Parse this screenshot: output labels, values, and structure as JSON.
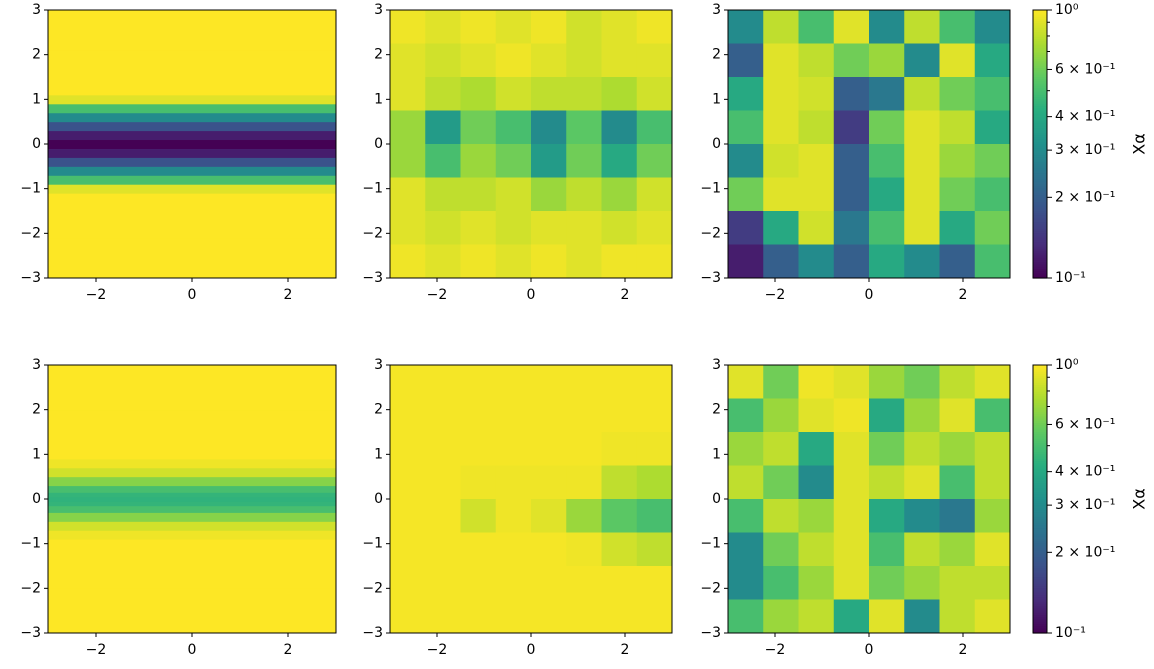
{
  "chart_data": [
    {
      "type": "profile",
      "colormap": "viridis",
      "log": true,
      "clim": [
        0.1,
        1
      ],
      "xlim": [
        -3,
        3
      ],
      "ylim": [
        -3,
        3
      ],
      "xticks": [
        {
          "value": -2,
          "label": "−2"
        },
        0,
        2
      ],
      "yticks": [
        {
          "value": -3,
          "label": "−3"
        },
        {
          "value": -2,
          "label": "−2"
        },
        {
          "value": -1,
          "label": "−1"
        },
        0,
        1,
        2,
        3
      ],
      "y": [
        -3,
        -1.2,
        -1,
        -0.8,
        -0.6,
        -0.4,
        -0.2,
        0,
        0.2,
        0.4,
        0.6,
        0.8,
        1,
        1.2,
        3
      ],
      "values": [
        1,
        1,
        0.9,
        0.5,
        0.3,
        0.18,
        0.12,
        0.1,
        0.12,
        0.18,
        0.3,
        0.5,
        0.9,
        1,
        1
      ]
    },
    {
      "type": "heatmap",
      "colormap": "viridis",
      "log": true,
      "clim": [
        0.1,
        1
      ],
      "xlim": [
        -3,
        3
      ],
      "ylim": [
        -3,
        3
      ],
      "xticks": [
        {
          "value": -2,
          "label": "−2"
        },
        0,
        2
      ],
      "yticks": [
        {
          "value": -3,
          "label": "−3"
        },
        {
          "value": -2,
          "label": "−2"
        },
        {
          "value": -1,
          "label": "−1"
        },
        0,
        1,
        2,
        3
      ],
      "z": [
        [
          0.95,
          0.9,
          0.95,
          0.9,
          0.95,
          0.85,
          0.9,
          0.95
        ],
        [
          0.9,
          0.85,
          0.9,
          0.95,
          0.9,
          0.85,
          0.9,
          0.9
        ],
        [
          0.9,
          0.8,
          0.75,
          0.85,
          0.8,
          0.8,
          0.75,
          0.85
        ],
        [
          0.7,
          0.35,
          0.6,
          0.5,
          0.3,
          0.55,
          0.3,
          0.5
        ],
        [
          0.7,
          0.5,
          0.7,
          0.6,
          0.35,
          0.6,
          0.4,
          0.6
        ],
        [
          0.9,
          0.8,
          0.8,
          0.85,
          0.7,
          0.8,
          0.7,
          0.85
        ],
        [
          0.9,
          0.85,
          0.9,
          0.85,
          0.9,
          0.9,
          0.85,
          0.9
        ],
        [
          0.95,
          0.9,
          0.95,
          0.9,
          0.95,
          0.9,
          0.95,
          0.95
        ]
      ]
    },
    {
      "type": "heatmap",
      "colormap": "viridis",
      "log": true,
      "clim": [
        0.1,
        1
      ],
      "xlim": [
        -3,
        3
      ],
      "ylim": [
        -3,
        3
      ],
      "xticks": [
        {
          "value": -2,
          "label": "−2"
        },
        0,
        2
      ],
      "yticks": [
        {
          "value": -3,
          "label": "−3"
        },
        {
          "value": -2,
          "label": "−2"
        },
        {
          "value": -1,
          "label": "−1"
        },
        0,
        1,
        2,
        3
      ],
      "z": [
        [
          0.3,
          0.8,
          0.5,
          0.9,
          0.3,
          0.8,
          0.5,
          0.3
        ],
        [
          0.2,
          0.9,
          0.8,
          0.6,
          0.7,
          0.3,
          0.9,
          0.4
        ],
        [
          0.4,
          0.9,
          0.85,
          0.2,
          0.25,
          0.8,
          0.6,
          0.5
        ],
        [
          0.5,
          0.9,
          0.8,
          0.15,
          0.6,
          0.9,
          0.8,
          0.4
        ],
        [
          0.3,
          0.85,
          0.9,
          0.2,
          0.5,
          0.9,
          0.7,
          0.6
        ],
        [
          0.6,
          0.9,
          0.9,
          0.2,
          0.4,
          0.9,
          0.6,
          0.5
        ],
        [
          0.15,
          0.4,
          0.85,
          0.25,
          0.5,
          0.9,
          0.4,
          0.6
        ],
        [
          0.12,
          0.2,
          0.3,
          0.2,
          0.4,
          0.3,
          0.2,
          0.5
        ]
      ],
      "colorbar": {
        "label": "Xα",
        "lim": [
          0.1,
          1
        ],
        "ticks": [
          {
            "value": 1,
            "label": "10⁰"
          },
          {
            "value": 0.6,
            "label": "6 × 10⁻¹"
          },
          {
            "value": 0.4,
            "label": "4 × 10⁻¹"
          },
          {
            "value": 0.3,
            "label": "3 × 10⁻¹"
          },
          {
            "value": 0.2,
            "label": "2 × 10⁻¹"
          },
          {
            "value": 0.1,
            "label": "10⁻¹"
          }
        ],
        "minor_ticks": [
          0.5,
          0.7,
          0.8,
          0.9
        ]
      }
    },
    {
      "type": "profile",
      "colormap": "viridis",
      "log": true,
      "clim": [
        0.1,
        1
      ],
      "xlim": [
        -3,
        3
      ],
      "ylim": [
        -3,
        3
      ],
      "xticks": [
        {
          "value": -2,
          "label": "−2"
        },
        0,
        2
      ],
      "yticks": [
        {
          "value": -3,
          "label": "−3"
        },
        {
          "value": -2,
          "label": "−2"
        },
        {
          "value": -1,
          "label": "−1"
        },
        0,
        1,
        2,
        3
      ],
      "y": [
        -3,
        -1,
        -0.8,
        -0.6,
        -0.4,
        -0.2,
        -0.1,
        0,
        0.1,
        0.2,
        0.4,
        0.6,
        0.8,
        1,
        3
      ],
      "values": [
        1,
        1,
        0.95,
        0.85,
        0.65,
        0.5,
        0.45,
        0.44,
        0.45,
        0.5,
        0.65,
        0.85,
        0.95,
        1,
        1
      ]
    },
    {
      "type": "heatmap",
      "colormap": "viridis",
      "log": true,
      "clim": [
        0.1,
        1
      ],
      "xlim": [
        -3,
        3
      ],
      "ylim": [
        -3,
        3
      ],
      "xticks": [
        {
          "value": -2,
          "label": "−2"
        },
        0,
        2
      ],
      "yticks": [
        {
          "value": -3,
          "label": "−3"
        },
        {
          "value": -2,
          "label": "−2"
        },
        {
          "value": -1,
          "label": "−1"
        },
        0,
        1,
        2,
        3
      ],
      "z": [
        [
          0.97,
          0.97,
          0.97,
          0.97,
          0.97,
          0.97,
          0.97,
          0.97
        ],
        [
          0.97,
          0.97,
          0.97,
          0.97,
          0.97,
          0.97,
          0.97,
          0.97
        ],
        [
          0.97,
          0.97,
          0.97,
          0.97,
          0.97,
          0.97,
          0.95,
          0.95
        ],
        [
          0.97,
          0.97,
          0.95,
          0.95,
          0.95,
          0.95,
          0.8,
          0.75
        ],
        [
          0.97,
          0.97,
          0.85,
          0.95,
          0.9,
          0.7,
          0.55,
          0.5
        ],
        [
          0.97,
          0.97,
          0.97,
          0.97,
          0.97,
          0.95,
          0.85,
          0.8
        ],
        [
          0.97,
          0.97,
          0.97,
          0.97,
          0.97,
          0.97,
          0.97,
          0.97
        ],
        [
          0.97,
          0.97,
          0.97,
          0.97,
          0.97,
          0.97,
          0.97,
          0.97
        ]
      ]
    },
    {
      "type": "heatmap",
      "colormap": "viridis",
      "log": true,
      "clim": [
        0.1,
        1
      ],
      "xlim": [
        -3,
        3
      ],
      "ylim": [
        -3,
        3
      ],
      "xticks": [
        {
          "value": -2,
          "label": "−2"
        },
        0,
        2
      ],
      "yticks": [
        {
          "value": -3,
          "label": "−3"
        },
        {
          "value": -2,
          "label": "−2"
        },
        {
          "value": -1,
          "label": "−1"
        },
        0,
        1,
        2,
        3
      ],
      "z": [
        [
          0.9,
          0.6,
          0.95,
          0.9,
          0.7,
          0.6,
          0.8,
          0.9
        ],
        [
          0.5,
          0.7,
          0.9,
          0.95,
          0.4,
          0.7,
          0.9,
          0.5
        ],
        [
          0.7,
          0.8,
          0.4,
          0.9,
          0.6,
          0.8,
          0.7,
          0.8
        ],
        [
          0.8,
          0.6,
          0.3,
          0.9,
          0.8,
          0.9,
          0.5,
          0.8
        ],
        [
          0.5,
          0.8,
          0.7,
          0.9,
          0.4,
          0.3,
          0.25,
          0.7
        ],
        [
          0.3,
          0.6,
          0.8,
          0.9,
          0.5,
          0.8,
          0.7,
          0.9
        ],
        [
          0.3,
          0.5,
          0.7,
          0.9,
          0.6,
          0.7,
          0.8,
          0.8
        ],
        [
          0.5,
          0.7,
          0.8,
          0.4,
          0.9,
          0.3,
          0.8,
          0.9
        ]
      ],
      "colorbar": {
        "label": "Xα",
        "lim": [
          0.1,
          1
        ],
        "ticks": [
          {
            "value": 1,
            "label": "10⁰"
          },
          {
            "value": 0.6,
            "label": "6 × 10⁻¹"
          },
          {
            "value": 0.4,
            "label": "4 × 10⁻¹"
          },
          {
            "value": 0.3,
            "label": "3 × 10⁻¹"
          },
          {
            "value": 0.2,
            "label": "2 × 10⁻¹"
          },
          {
            "value": 0.1,
            "label": "10⁻¹"
          }
        ],
        "minor_ticks": [
          0.5,
          0.7,
          0.8,
          0.9
        ]
      }
    }
  ]
}
